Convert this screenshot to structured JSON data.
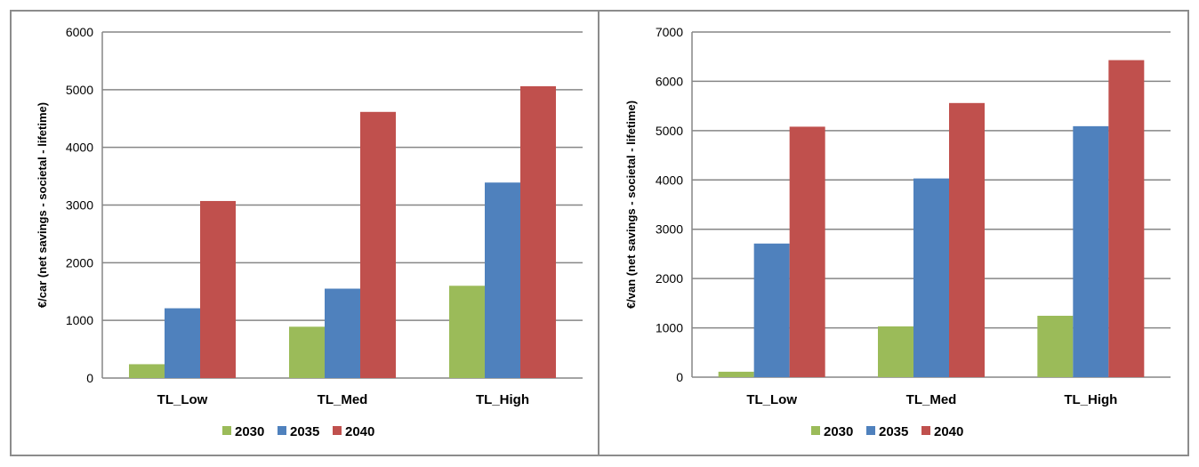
{
  "chart_data": [
    {
      "type": "bar",
      "title": "",
      "xlabel": "",
      "ylabel": "€/car (net savings - societal - lifetime)",
      "ylim": [
        0,
        6000
      ],
      "yticks": [
        0,
        1000,
        2000,
        3000,
        4000,
        5000,
        6000
      ],
      "grid": true,
      "legend_position": "bottom",
      "categories": [
        "TL_Low",
        "TL_Med",
        "TL_High"
      ],
      "series": [
        {
          "name": "2030",
          "color": "#9bbb59",
          "values": [
            240,
            890,
            1600
          ]
        },
        {
          "name": "2035",
          "color": "#4f81bd",
          "values": [
            1210,
            1550,
            3390
          ]
        },
        {
          "name": "2040",
          "color": "#c0504d",
          "values": [
            3070,
            4615,
            5060
          ]
        }
      ]
    },
    {
      "type": "bar",
      "title": "",
      "xlabel": "",
      "ylabel": "€/van (net savings - societal - lifetime)",
      "ylim": [
        0,
        7000
      ],
      "yticks": [
        0,
        1000,
        2000,
        3000,
        4000,
        5000,
        6000,
        7000
      ],
      "grid": true,
      "legend_position": "bottom",
      "categories": [
        "TL_Low",
        "TL_Med",
        "TL_High"
      ],
      "series": [
        {
          "name": "2030",
          "color": "#9bbb59",
          "values": [
            110,
            1030,
            1245
          ]
        },
        {
          "name": "2035",
          "color": "#4f81bd",
          "values": [
            2710,
            4030,
            5090
          ]
        },
        {
          "name": "2040",
          "color": "#c0504d",
          "values": [
            5080,
            5560,
            6430
          ]
        }
      ]
    }
  ]
}
